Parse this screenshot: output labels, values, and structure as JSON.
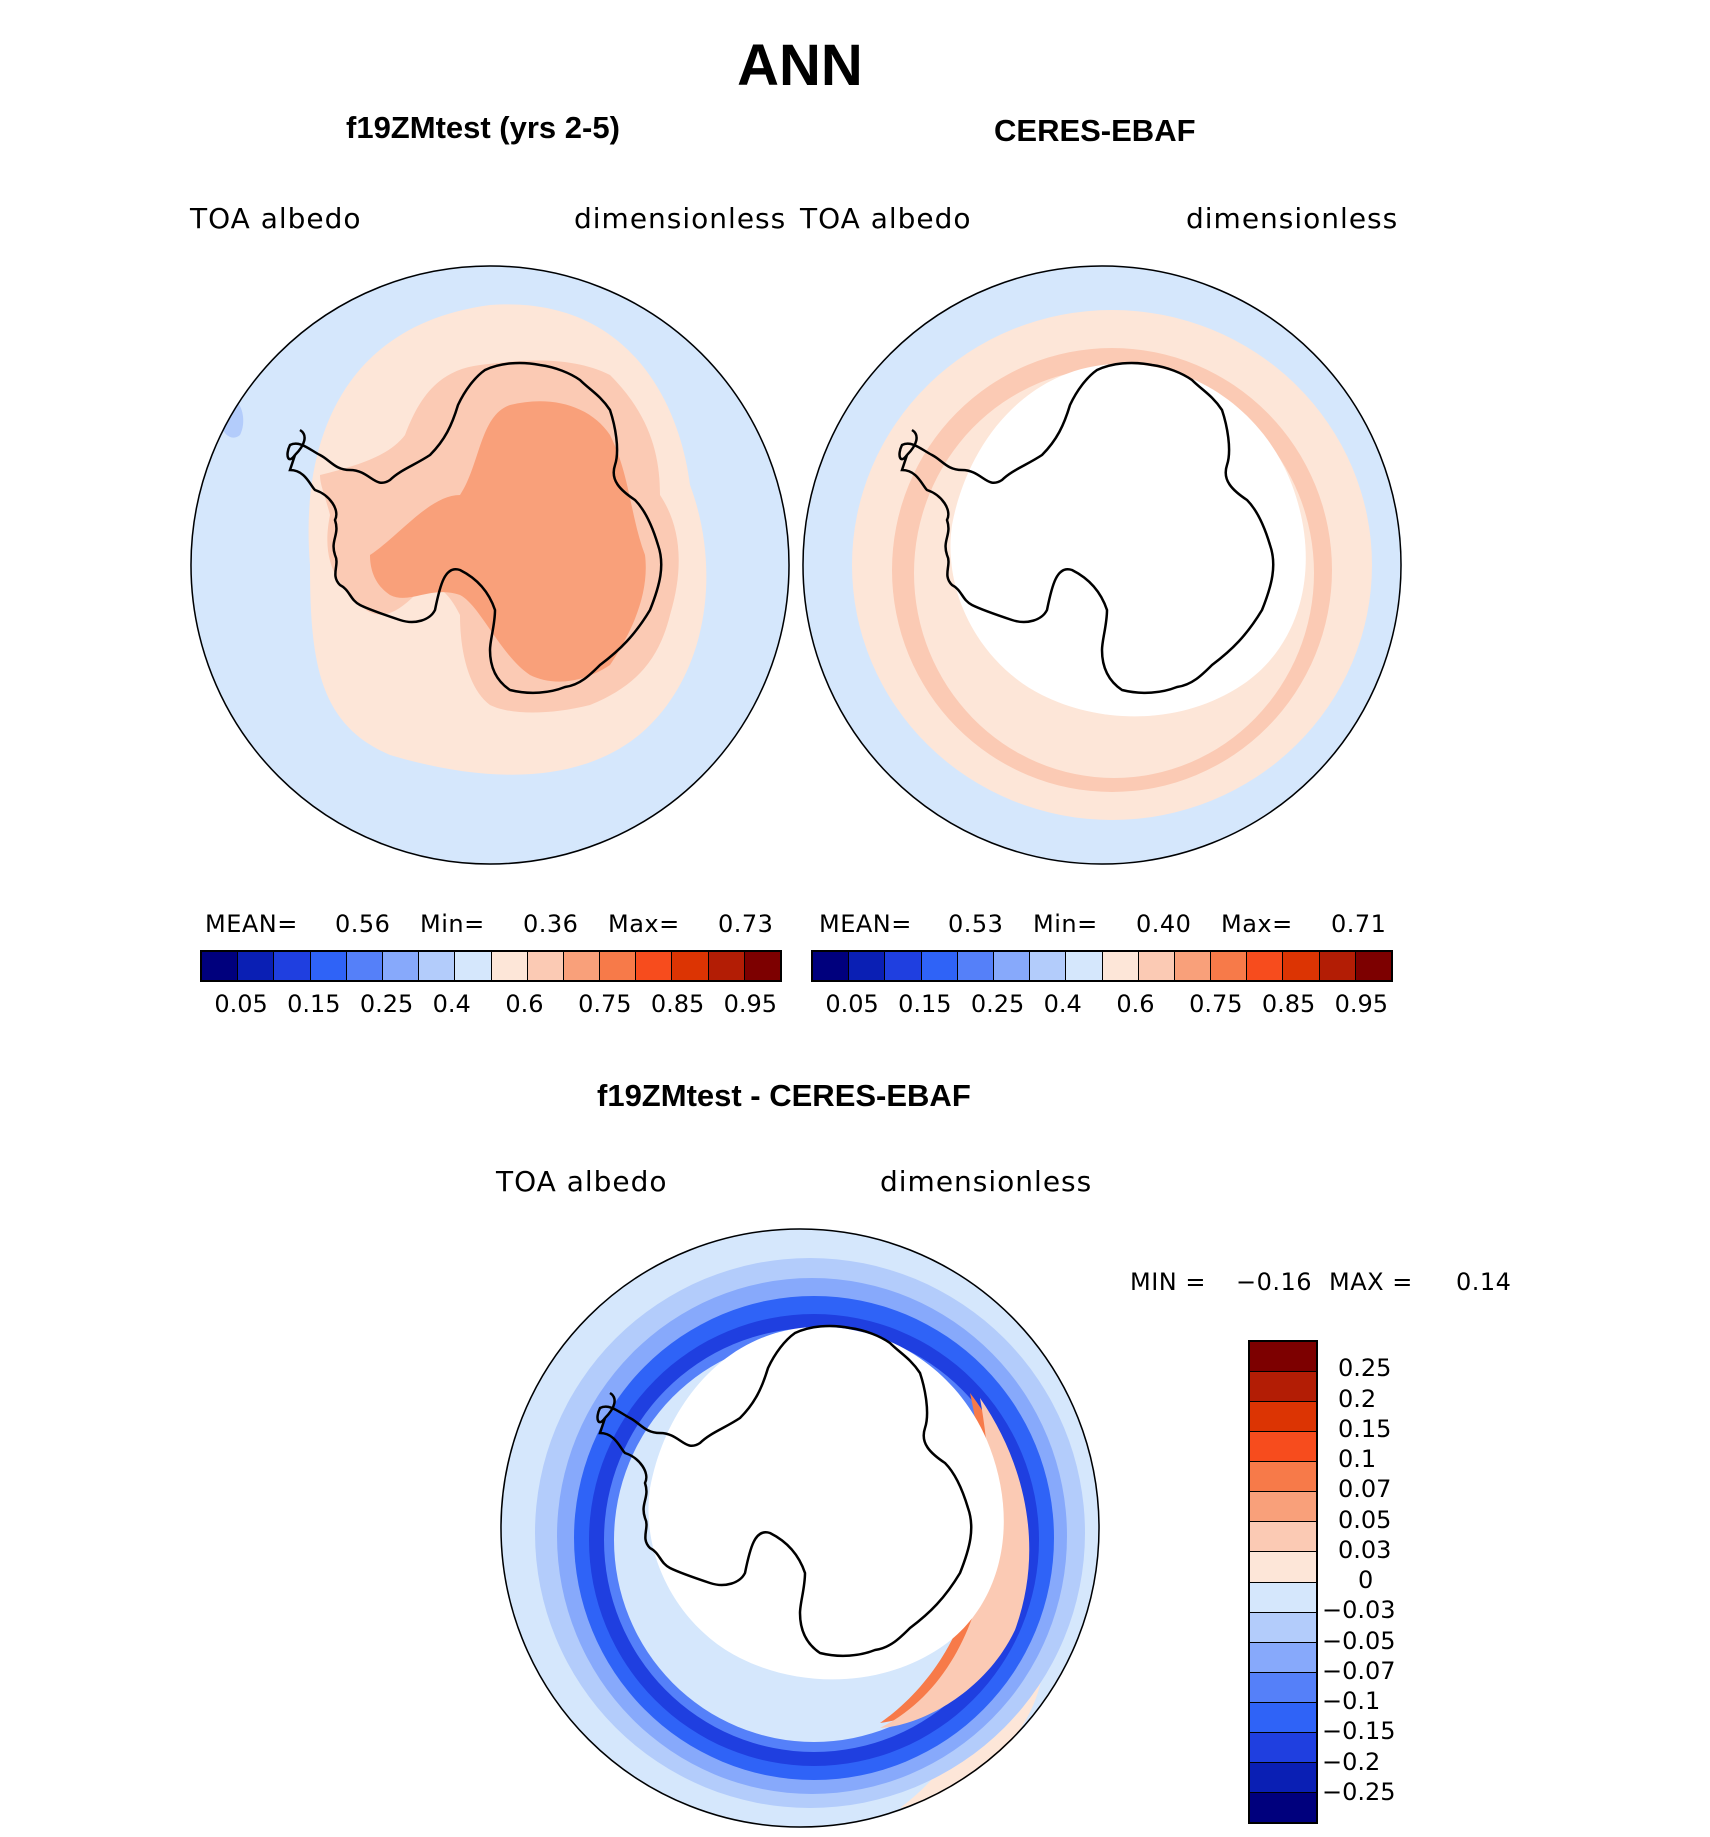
{
  "title": "ANN",
  "palette": {
    "base": [
      "#00007d",
      "#0a1fb4",
      "#1f3fe0",
      "#2f63f7",
      "#5580f9",
      "#87a9fb",
      "#b3ccfb",
      "#d5e7fc",
      "#fde6d8",
      "#fbcab4",
      "#f9a07a",
      "#f77a49",
      "#f74c1d",
      "#dc3403",
      "#b31d05",
      "#7d0000"
    ],
    "land_outline": "#000000",
    "masked": "#ffffff"
  },
  "panels": [
    {
      "case": "f19ZMtest (yrs 2-5)",
      "variable": "TOA  albedo",
      "units": "dimensionless",
      "stats": {
        "mean_label": "MEAN=",
        "mean": "0.56",
        "min_label": "Min=",
        "min": "0.36",
        "max_label": "Max=",
        "max": "0.73"
      },
      "ticks": [
        "0.05",
        "0.15",
        "0.25",
        "0.4",
        "0.6",
        "0.75",
        "0.85",
        "0.95"
      ]
    },
    {
      "case": "CERES-EBAF",
      "variable": "TOA  albedo",
      "units": "dimensionless",
      "stats": {
        "mean_label": "MEAN=",
        "mean": "0.53",
        "min_label": "Min=",
        "min": "0.40",
        "max_label": "Max=",
        "max": "0.71"
      },
      "ticks": [
        "0.05",
        "0.15",
        "0.25",
        "0.4",
        "0.6",
        "0.75",
        "0.85",
        "0.95"
      ]
    }
  ],
  "difference": {
    "title": "f19ZMtest - CERES-EBAF",
    "variable": "TOA  albedo",
    "units": "dimensionless",
    "min_label": "MIN =",
    "min": "−0.16",
    "max_label": "MAX =",
    "max": "0.14",
    "levels": [
      "0.25",
      "0.2",
      "0.15",
      "0.1",
      "0.07",
      "0.05",
      "0.03",
      "0",
      "−0.03",
      "−0.05",
      "−0.07",
      "−0.1",
      "−0.15",
      "−0.2",
      "−0.25"
    ],
    "colors": [
      "#7d0000",
      "#b31d05",
      "#dc3403",
      "#f74c1d",
      "#f77a49",
      "#f9a07a",
      "#fbcab4",
      "#fde6d8",
      "#d5e7fc",
      "#b3ccfb",
      "#87a9fb",
      "#5580f9",
      "#2f63f7",
      "#1f3fe0",
      "#0a1fb4",
      "#00007d"
    ]
  }
}
